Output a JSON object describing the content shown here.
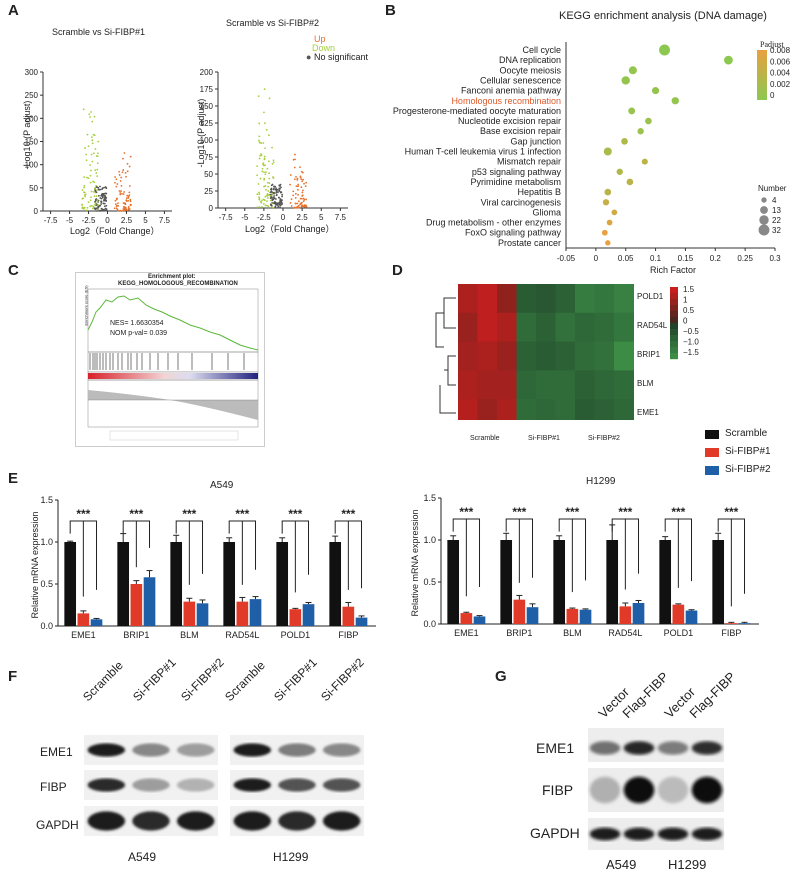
{
  "panels": {
    "A": {
      "letter": "A",
      "plot1_title": "Scramble vs Si-FIBP#1",
      "plot2_title": "Scramble vs Si-FIBP#2",
      "xlabel": "Log2（Fold Change）",
      "ylabel": "-Log10 (P adjust)",
      "legend": [
        {
          "label": "Up",
          "color": "#e8702a"
        },
        {
          "label": "Down",
          "color": "#a6cf3a"
        },
        {
          "label": "No significant",
          "color": "#555555"
        }
      ],
      "xticks": [
        "-7.5",
        "-5",
        "-2.5",
        "0",
        "2.5",
        "5",
        "7.5"
      ],
      "yticks1": [
        "0",
        "50",
        "100",
        "150",
        "200",
        "250",
        "300"
      ],
      "yticks2": [
        "0",
        "25",
        "50",
        "75",
        "100",
        "125",
        "150",
        "175",
        "200"
      ]
    },
    "B": {
      "letter": "B",
      "title": "KEGG enrichment analysis (DNA damage)",
      "xlabel": "Rich Factor",
      "xticks": [
        "-0.05",
        "0",
        "0.05",
        "0.1",
        "0.15",
        "0.2",
        "0.25",
        "0.3"
      ],
      "padjust_title": "Padjust",
      "padjust_ticks": [
        "0.008",
        "0.006",
        "0.004",
        "0.002",
        "0"
      ],
      "number_title": "Number",
      "number_items": [
        "4",
        "13",
        "22",
        "32"
      ],
      "highlight_color": "#e05a2a"
    },
    "C": {
      "letter": "C",
      "title": "Enrichment plot:",
      "subtitle": "KEGG_HOMOLOGOUS_RECOMBINATION",
      "nes": "NES= 1.6630354",
      "pval": "NOM p-val= 0.039",
      "ylabel": "Enrichment score (ES)"
    },
    "D": {
      "letter": "D",
      "genes": [
        "POLD1",
        "RAD54L",
        "BRIP1",
        "BLM",
        "EME1"
      ],
      "groups": [
        "Scramble",
        "Si-FIBP#1",
        "Si-FIBP#2"
      ],
      "scale_ticks": [
        "1.5",
        "1",
        "0.5",
        "0",
        "−0.5",
        "−1.0",
        "−1.5"
      ]
    },
    "E": {
      "letter": "E",
      "legend": [
        {
          "label": "Scramble",
          "color": "#111111"
        },
        {
          "label": "Si-FIBP#1",
          "color": "#e23a28"
        },
        {
          "label": "Si-FIBP#2",
          "color": "#1f5fa8"
        }
      ],
      "ylabel": "Relative mRNA expression",
      "sig": "***",
      "A549": {
        "title": "A549",
        "yticks": [
          "0.0",
          "0.5",
          "1.0",
          "1.5"
        ]
      },
      "H1299": {
        "title": "H1299",
        "yticks": [
          "0.0",
          "0.5",
          "1.0",
          "1.5"
        ]
      }
    },
    "F": {
      "letter": "F",
      "lanes": [
        "Scramble",
        "Si-FIBP#1",
        "Si-FIBP#2",
        "Scramble",
        "Si-FIBP#1",
        "Si-FIBP#2"
      ],
      "rows": [
        "EME1",
        "FIBP",
        "GAPDH"
      ],
      "cells": [
        "A549",
        "H1299"
      ]
    },
    "G": {
      "letter": "G",
      "lanes": [
        "Vector",
        "Flag-FIBP",
        "Vector",
        "Flag-FIBP"
      ],
      "rows": [
        "EME1",
        "FIBP",
        "GAPDH"
      ],
      "cells": [
        "A549",
        "H1299"
      ]
    }
  },
  "chart_data": [
    {
      "type": "scatter",
      "title": "KEGG enrichment analysis (DNA damage)",
      "xlabel": "Rich Factor",
      "xlim": [
        -0.05,
        0.3
      ],
      "categories": [
        "Cell cycle",
        "DNA replication",
        "Oocyte meiosis",
        "Cellular senescence",
        "Fanconi anemia pathway",
        "Homologous recombination",
        "Progesterone-mediated oocyte maturation",
        "Nucleotide excision repair",
        "Base excision repair",
        "Gap junction",
        "Human T-cell leukemia virus 1 infection",
        "Mismatch repair",
        "p53 signaling pathway",
        "Pyrimidine metabolism",
        "Hepatitis B",
        "Viral carcinogenesis",
        "Glioma",
        "Drug metabolism - other enzymes",
        "FoxO signaling pathway",
        "Prostate cancer"
      ],
      "rich_factor": [
        0.115,
        0.222,
        0.062,
        0.05,
        0.1,
        0.133,
        0.06,
        0.088,
        0.075,
        0.048,
        0.02,
        0.082,
        0.04,
        0.057,
        0.02,
        0.017,
        0.031,
        0.023,
        0.015,
        0.02
      ],
      "number": [
        32,
        18,
        14,
        16,
        10,
        11,
        9,
        8,
        7,
        8,
        14,
        6,
        7,
        8,
        8,
        7,
        5,
        5,
        5,
        4
      ],
      "padjust": [
        0.0,
        0.0,
        0.0005,
        0.0008,
        0.0008,
        0.0006,
        0.001,
        0.0015,
        0.0015,
        0.003,
        0.0025,
        0.004,
        0.003,
        0.004,
        0.004,
        0.005,
        0.006,
        0.007,
        0.008,
        0.008
      ]
    },
    {
      "type": "bar",
      "title": "A549",
      "ylabel": "Relative mRNA expression",
      "ylim": [
        0,
        1.5
      ],
      "categories": [
        "EME1",
        "BRIP1",
        "BLM",
        "RAD54L",
        "POLD1",
        "FIBP"
      ],
      "series": [
        {
          "name": "Scramble",
          "values": [
            1.0,
            1.0,
            1.0,
            1.0,
            1.0,
            1.0
          ]
        },
        {
          "name": "Si-FIBP#1",
          "values": [
            0.15,
            0.5,
            0.29,
            0.29,
            0.2,
            0.23
          ]
        },
        {
          "name": "Si-FIBP#2",
          "values": [
            0.08,
            0.58,
            0.27,
            0.32,
            0.26,
            0.1
          ]
        }
      ]
    },
    {
      "type": "bar",
      "title": "H1299",
      "ylabel": "Relative mRNA expression",
      "ylim": [
        0,
        1.5
      ],
      "categories": [
        "EME1",
        "BRIP1",
        "BLM",
        "RAD54L",
        "POLD1",
        "FIBP"
      ],
      "series": [
        {
          "name": "Scramble",
          "values": [
            1.0,
            1.0,
            1.0,
            1.0,
            1.0,
            1.0
          ]
        },
        {
          "name": "Si-FIBP#1",
          "values": [
            0.13,
            0.29,
            0.18,
            0.21,
            0.23,
            0.01
          ]
        },
        {
          "name": "Si-FIBP#2",
          "values": [
            0.09,
            0.2,
            0.17,
            0.25,
            0.16,
            0.01
          ]
        }
      ]
    },
    {
      "type": "heatmap",
      "rows": [
        "POLD1",
        "RAD54L",
        "BRIP1",
        "BLM",
        "EME1"
      ],
      "columns": [
        "Scramble",
        "Scramble",
        "Scramble",
        "Si-FIBP#1",
        "Si-FIBP#1",
        "Si-FIBP#1",
        "Si-FIBP#2",
        "Si-FIBP#2",
        "Si-FIBP#2"
      ],
      "values": [
        [
          1.2,
          1.4,
          0.9,
          -0.6,
          -0.5,
          -0.7,
          -1.2,
          -1.1,
          -1.3
        ],
        [
          1.0,
          1.4,
          1.2,
          -0.9,
          -0.7,
          -1.0,
          -0.8,
          -0.9,
          -1.1
        ],
        [
          1.1,
          1.2,
          1.0,
          -0.7,
          -0.6,
          -0.7,
          -0.9,
          -1.0,
          -1.5
        ],
        [
          1.2,
          1.1,
          1.1,
          -0.8,
          -0.9,
          -0.9,
          -0.7,
          -0.8,
          -0.9
        ],
        [
          1.3,
          1.0,
          1.2,
          -0.9,
          -0.8,
          -0.9,
          -0.6,
          -0.7,
          -0.8
        ]
      ]
    }
  ]
}
